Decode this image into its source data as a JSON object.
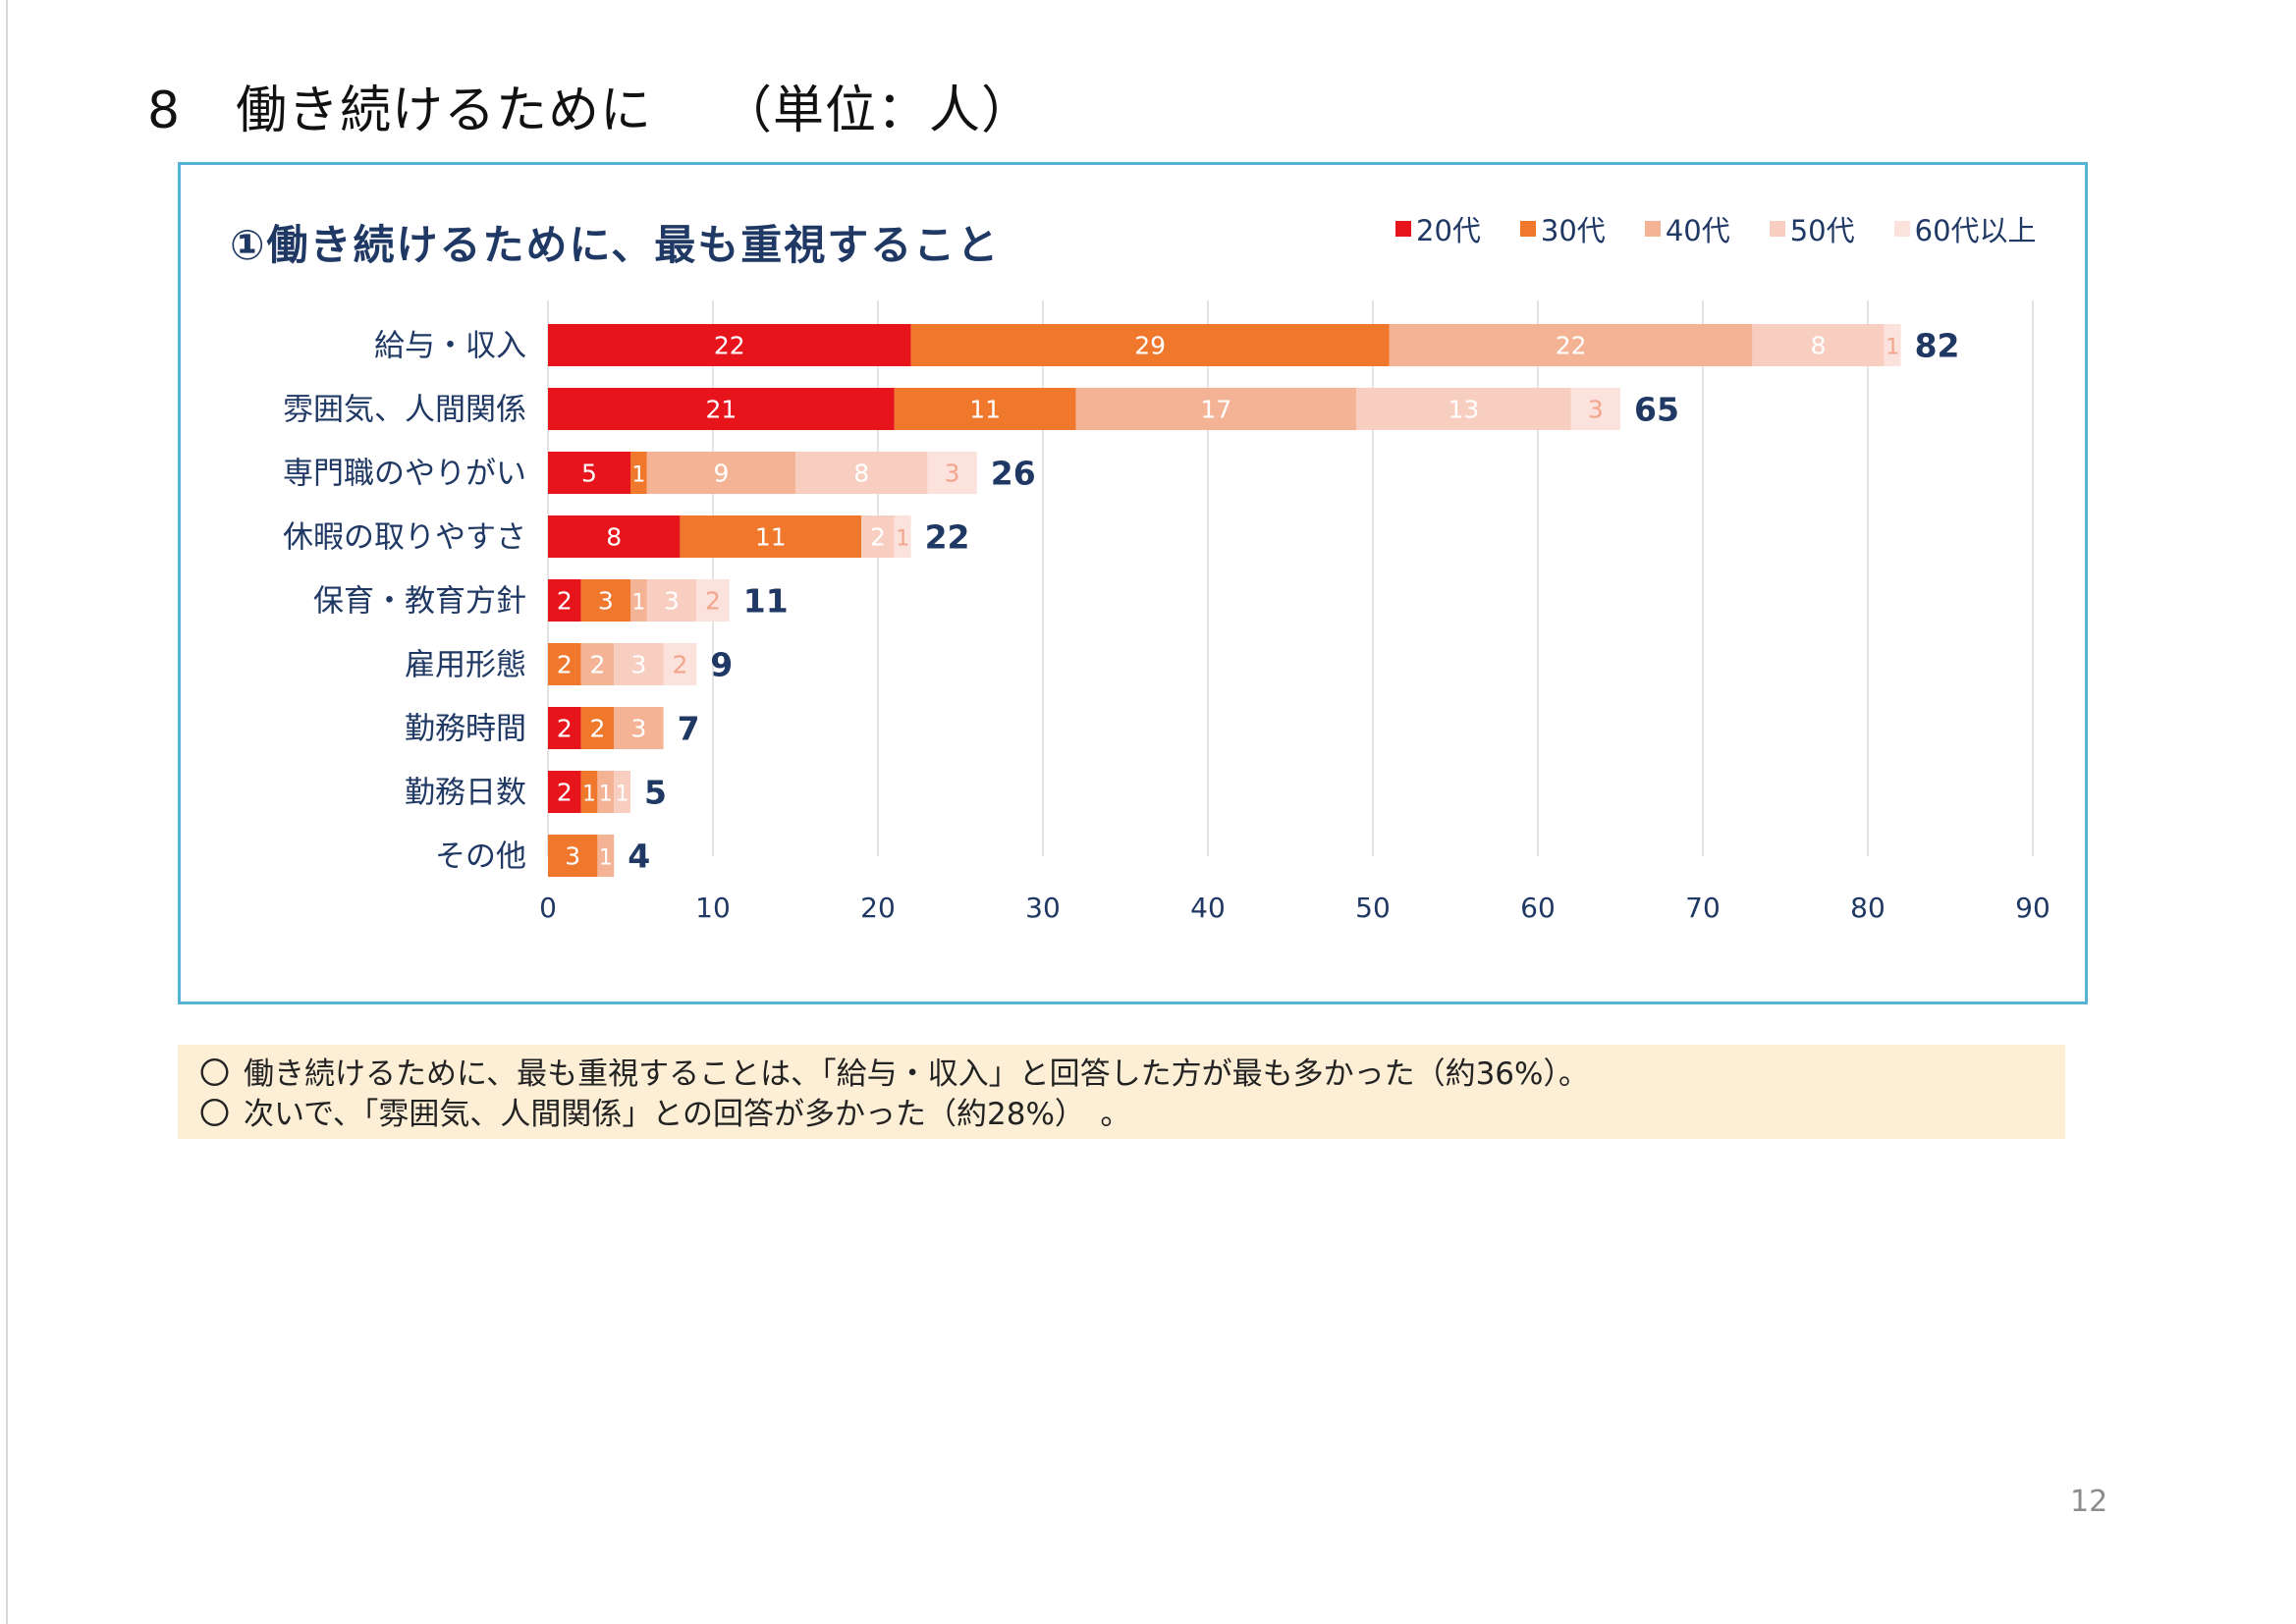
{
  "page": {
    "section_number": "8",
    "section_title": "働き続けるために",
    "section_unit": "（単位：人）",
    "page_number": "12"
  },
  "legend": [
    {
      "label": "20代",
      "color": "#e8141c"
    },
    {
      "label": "30代",
      "color": "#f0782d"
    },
    {
      "label": "40代",
      "color": "#f5b396"
    },
    {
      "label": "50代",
      "color": "#f8cec0"
    },
    {
      "label": "60代以上",
      "color": "#fbe2dc"
    }
  ],
  "chart_data": {
    "type": "bar",
    "orientation": "horizontal",
    "stacked": true,
    "title": "①働き続けるために、最も重視すること",
    "categories": [
      "給与・収入",
      "雰囲気、人間関係",
      "専門職のやりがい",
      "休暇の取りやすさ",
      "保育・教育方針",
      "雇用形態",
      "勤務時間",
      "勤務日数",
      "その他"
    ],
    "series": [
      {
        "name": "20代",
        "values": [
          22,
          21,
          5,
          8,
          2,
          0,
          2,
          2,
          0
        ]
      },
      {
        "name": "30代",
        "values": [
          29,
          11,
          1,
          11,
          3,
          2,
          2,
          1,
          3
        ]
      },
      {
        "name": "40代",
        "values": [
          22,
          17,
          9,
          0,
          1,
          2,
          3,
          1,
          1
        ]
      },
      {
        "name": "50代",
        "values": [
          8,
          13,
          8,
          2,
          3,
          3,
          0,
          1,
          0
        ]
      },
      {
        "name": "60代以上",
        "values": [
          1,
          3,
          3,
          1,
          2,
          2,
          0,
          0,
          0
        ]
      }
    ],
    "totals": [
      82,
      65,
      26,
      22,
      11,
      9,
      7,
      5,
      4
    ],
    "xlim": [
      0,
      90
    ],
    "xticks": [
      0,
      10,
      20,
      30,
      40,
      50,
      60,
      70,
      80,
      90
    ],
    "grid": "vertical",
    "legend_position": "top-right"
  },
  "notes": [
    {
      "marker": "〇",
      "text": "働き続けるために、最も重視することは、「給与・収入」と回答した方が最も多かった（約36%）。"
    },
    {
      "marker": "〇",
      "text": "次いで、「雰囲気、人間関係」との回答が多かった（約28%）　。"
    }
  ]
}
